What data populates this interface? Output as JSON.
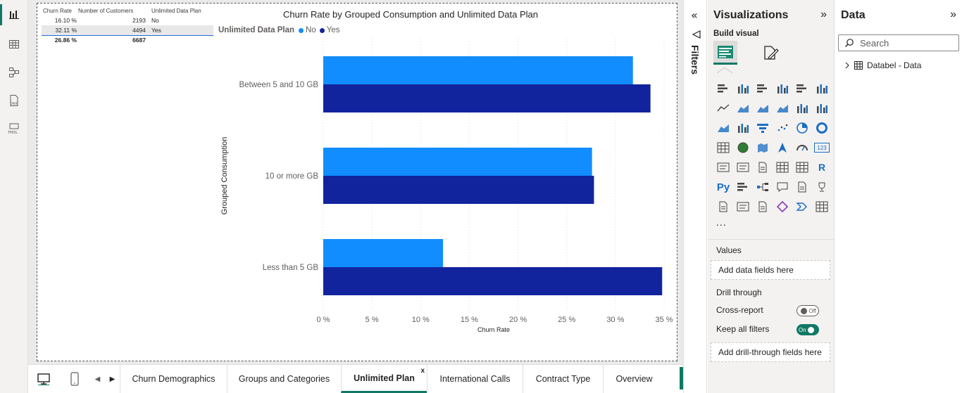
{
  "table": {
    "headers": [
      "Churn Rate",
      "Number of Customers",
      "Unlimited Data Plan"
    ],
    "rows": [
      [
        "16.10 %",
        "2193",
        "No"
      ],
      [
        "32.11 %",
        "4494",
        "Yes"
      ]
    ],
    "total": [
      "26.86 %",
      "6687",
      ""
    ]
  },
  "chart_data": {
    "type": "bar",
    "orientation": "horizontal",
    "title": "Churn Rate by Grouped Consumption and Unlimited Data Plan",
    "legend_title": "Unlimited Data Plan",
    "xlabel": "Churn Rate",
    "ylabel": "Grouped Consumption",
    "categories": [
      "Between 5 and 10 GB",
      "10 or more GB",
      "Less than 5 GB"
    ],
    "series": [
      {
        "name": "No",
        "color": "#118dff",
        "values": [
          31.8,
          27.6,
          12.3
        ]
      },
      {
        "name": "Yes",
        "color": "#12239e",
        "values": [
          33.6,
          27.8,
          34.8
        ]
      }
    ],
    "xlim": [
      0,
      35
    ],
    "x_ticks": [
      "0 %",
      "5 %",
      "10 %",
      "15 %",
      "20 %",
      "25 %",
      "30 %",
      "35 %"
    ],
    "grid": "vertical dotted"
  },
  "page_tabs": [
    {
      "label": "Churn Demographics",
      "active": false
    },
    {
      "label": "Groups and Categories",
      "active": false
    },
    {
      "label": "Unlimited Plan",
      "active": true,
      "close": "x"
    },
    {
      "label": "International Calls",
      "active": false
    },
    {
      "label": "Contract Type",
      "active": false
    },
    {
      "label": "Overview",
      "active": false
    }
  ],
  "add_page": "+",
  "filters": {
    "label": "Filters"
  },
  "visualizations": {
    "title": "Visualizations",
    "build_visual": "Build visual",
    "more": "...",
    "values_label": "Values",
    "values_well": "Add data fields here",
    "drill_through": "Drill through",
    "cross_report": "Cross-report",
    "cross_report_state": "Off",
    "keep_filters": "Keep all filters",
    "keep_filters_state": "On",
    "drill_well": "Add drill-through fields here"
  },
  "data_pane": {
    "title": "Data",
    "search_placeholder": "Search",
    "table_name": "Databel - Data"
  },
  "icons": {
    "collapse": "»",
    "expand": "«",
    "viz_r": "R",
    "viz_py": "Py",
    "viz_123": "123"
  }
}
